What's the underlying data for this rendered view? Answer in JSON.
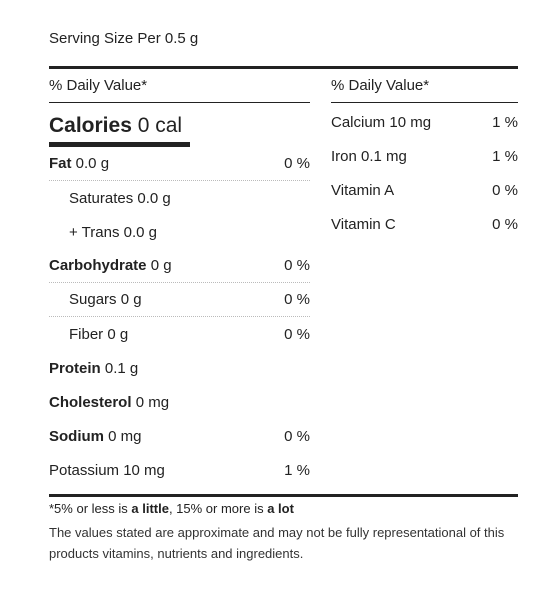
{
  "serving_size": "Serving Size Per 0.5 g",
  "daily_value_header": "% Daily Value*",
  "calories": {
    "label": "Calories",
    "value": "0 cal"
  },
  "left_rows": [
    {
      "label": "Fat",
      "value": "0.0 g",
      "pct": "0 %"
    },
    {
      "label": "Saturates",
      "value": "0.0 g",
      "pct": ""
    },
    {
      "label": "+ Trans",
      "value": "0.0 g",
      "pct": ""
    },
    {
      "label": "Carbohydrate",
      "value": "0 g",
      "pct": "0 %"
    },
    {
      "label": "Sugars",
      "value": "0 g",
      "pct": "0 %"
    },
    {
      "label": "Fiber",
      "value": "0 g",
      "pct": "0 %"
    },
    {
      "label": "Protein",
      "value": "0.1 g",
      "pct": ""
    },
    {
      "label": "Cholesterol",
      "value": "0 mg",
      "pct": ""
    },
    {
      "label": "Sodium",
      "value": "0 mg",
      "pct": "0 %"
    },
    {
      "label": "Potassium",
      "value": "10 mg",
      "pct": "1 %"
    }
  ],
  "right_rows": [
    {
      "label": "Calcium",
      "value": "10 mg",
      "pct": "1 %"
    },
    {
      "label": "Iron",
      "value": "0.1 mg",
      "pct": "1 %"
    },
    {
      "label": "Vitamin A",
      "value": "",
      "pct": "0 %"
    },
    {
      "label": "Vitamin C",
      "value": "",
      "pct": "0 %"
    }
  ],
  "footnote": {
    "part1": "*5% or less is ",
    "little": "a little",
    "part2": ", 15% or more is ",
    "lot": "a lot"
  },
  "disclaimer": "The values stated are approximate and may not be fully representational of this products vitamins, nutrients and ingredients."
}
